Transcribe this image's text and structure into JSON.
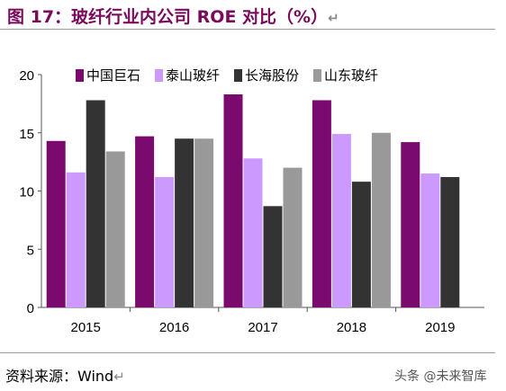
{
  "title": "图 17：玻纤行业内公司 ROE 对比（%）",
  "para_mark": "↵",
  "source": "资料来源：Wind",
  "watermark": "头条 @未来智库",
  "chart_data": {
    "type": "bar",
    "categories": [
      "2015",
      "2016",
      "2017",
      "2018",
      "2019"
    ],
    "series": [
      {
        "name": "中国巨石",
        "color": "#7b0a6e",
        "values": [
          14.3,
          14.7,
          18.3,
          17.8,
          14.2
        ]
      },
      {
        "name": "泰山玻纤",
        "color": "#cc99ff",
        "values": [
          11.6,
          11.2,
          12.8,
          14.9,
          11.5
        ]
      },
      {
        "name": "长海股份",
        "color": "#333333",
        "values": [
          17.8,
          14.5,
          8.7,
          10.8,
          11.2
        ]
      },
      {
        "name": "山东玻纤",
        "color": "#999999",
        "values": [
          13.4,
          14.5,
          12.0,
          15.0,
          null
        ]
      }
    ],
    "yticks": [
      "0",
      "5",
      "10",
      "15",
      "20"
    ],
    "ylim": [
      0,
      20
    ],
    "legend_position": "top",
    "grid": false
  }
}
